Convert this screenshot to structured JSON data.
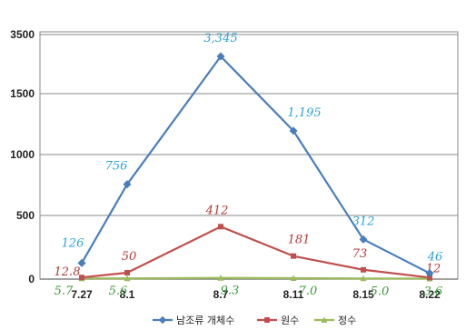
{
  "chart_data": {
    "type": "line",
    "categories": [
      "7.27",
      "8.1",
      "8.7",
      "8.11",
      "8.15",
      "8.22"
    ],
    "y_ticks": [
      "0",
      "500",
      "1000",
      "1500",
      "3500"
    ],
    "y_scale_note": "broken axis: tick 1500 followed by 3500",
    "grid": "horizontal",
    "legend_position": "bottom",
    "series": [
      {
        "name": "남조류 개체수",
        "color": "#4a7ebb",
        "values": [
          126,
          756,
          3345,
          1195,
          312,
          46
        ],
        "labels": [
          "126",
          "756",
          "3,345",
          "1,195",
          "312",
          "46"
        ],
        "label_color": "#2aa3d8"
      },
      {
        "name": "원수",
        "color": "#c0504d",
        "values": [
          12.8,
          50,
          412,
          181,
          73,
          12
        ],
        "labels": [
          "12.8",
          "50",
          "412",
          "181",
          "73",
          "12"
        ],
        "label_color": "#b03a37"
      },
      {
        "name": "정수",
        "color": "#9bbb59",
        "values": [
          5.7,
          5.6,
          9.3,
          7.0,
          5.0,
          3.6
        ],
        "labels": [
          "5.7",
          "5.6",
          "9.3",
          "7.0",
          "5.0",
          "3.6"
        ],
        "label_color": "#3a9a3a"
      }
    ]
  }
}
